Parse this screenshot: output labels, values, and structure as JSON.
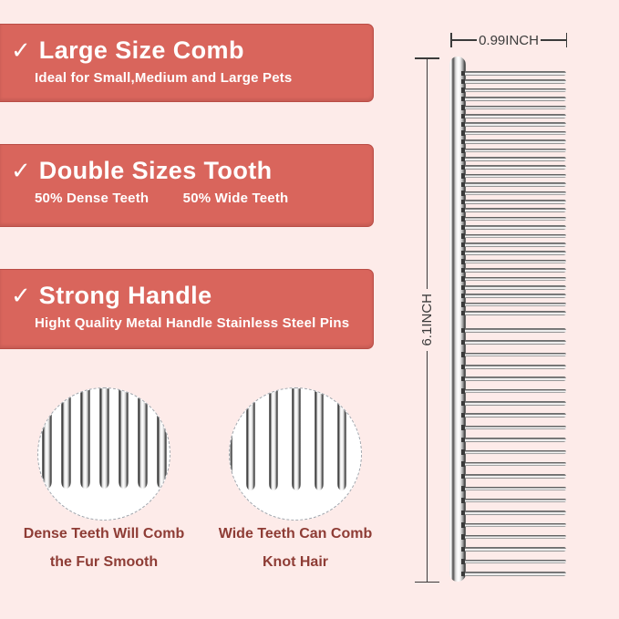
{
  "colors": {
    "background": "#fdebe9",
    "banner": "#d9655c",
    "banner_text": "#ffffff",
    "caption": "#8e3c35",
    "dimension": "#3b3b3b"
  },
  "banners": [
    {
      "check": "✓",
      "heading": "Large Size Comb",
      "subtitle": "Ideal for Small,Medium and Large Pets"
    },
    {
      "check": "✓",
      "heading": "Double Sizes Tooth",
      "subtitle_left": "50% Dense Teeth",
      "subtitle_right": "50% Wide Teeth"
    },
    {
      "check": "✓",
      "heading": "Strong Handle",
      "subtitle": "Hight Quality Metal Handle Stainless Steel Pins"
    }
  ],
  "comb": {
    "width_label": "0.99INCH",
    "height_label": "6.1INCH",
    "dense_teeth_count": 29,
    "wide_teeth_count": 21
  },
  "detail_circles": [
    {
      "type": "dense",
      "pin_count": 7,
      "caption_line1": "Dense Teeth Will Comb",
      "caption_line2": "the Fur Smooth"
    },
    {
      "type": "wide",
      "pin_count": 6,
      "caption_line1": "Wide Teeth Can Comb",
      "caption_line2": "Knot Hair"
    }
  ]
}
